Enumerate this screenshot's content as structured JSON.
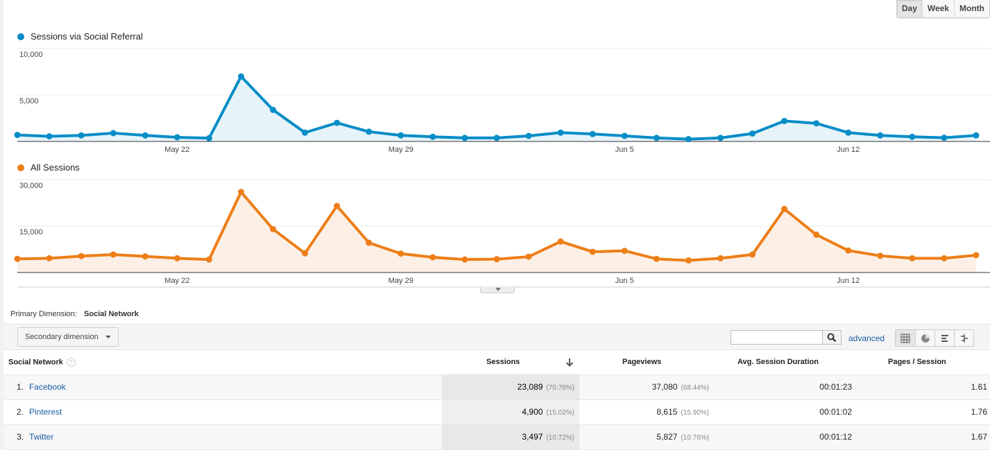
{
  "range_buttons": {
    "day": "Day",
    "week": "Week",
    "month": "Month",
    "active": "Day"
  },
  "chart_data": [
    {
      "type": "area",
      "title": "Sessions via Social Referral",
      "color": "#058dc7",
      "fill": "#e6f3f9",
      "ylim": [
        0,
        10000
      ],
      "yticks": [
        {
          "value": 10000,
          "label": "10,000"
        },
        {
          "value": 5000,
          "label": "5,000"
        }
      ],
      "xticks": [
        {
          "index": 5,
          "label": "May 22"
        },
        {
          "index": 12,
          "label": "May 29"
        },
        {
          "index": 19,
          "label": "Jun 5"
        },
        {
          "index": 26,
          "label": "Jun 12"
        }
      ],
      "x": [
        "May 17",
        "May 18",
        "May 19",
        "May 20",
        "May 21",
        "May 22",
        "May 23",
        "May 24",
        "May 25",
        "May 26",
        "May 27",
        "May 28",
        "May 29",
        "May 30",
        "May 31",
        "Jun 1",
        "Jun 2",
        "Jun 3",
        "Jun 4",
        "Jun 5",
        "Jun 6",
        "Jun 7",
        "Jun 8",
        "Jun 9",
        "Jun 10",
        "Jun 11",
        "Jun 12",
        "Jun 13",
        "Jun 14",
        "Jun 15",
        "Jun 16"
      ],
      "values": [
        700,
        550,
        650,
        900,
        650,
        450,
        350,
        7000,
        3400,
        950,
        2000,
        1050,
        650,
        500,
        380,
        380,
        600,
        950,
        800,
        600,
        380,
        250,
        380,
        850,
        2200,
        1950,
        950,
        650,
        500,
        400,
        650
      ]
    },
    {
      "type": "area",
      "title": "All Sessions",
      "color": "#ed7e17",
      "fill": "#fcefe5",
      "ylim": [
        0,
        30000
      ],
      "yticks": [
        {
          "value": 30000,
          "label": "30,000"
        },
        {
          "value": 15000,
          "label": "15,000"
        }
      ],
      "xticks": [
        {
          "index": 5,
          "label": "May 22"
        },
        {
          "index": 12,
          "label": "May 29"
        },
        {
          "index": 19,
          "label": "Jun 5"
        },
        {
          "index": 26,
          "label": "Jun 12"
        }
      ],
      "x": [
        "May 17",
        "May 18",
        "May 19",
        "May 20",
        "May 21",
        "May 22",
        "May 23",
        "May 24",
        "May 25",
        "May 26",
        "May 27",
        "May 28",
        "May 29",
        "May 30",
        "May 31",
        "Jun 1",
        "Jun 2",
        "Jun 3",
        "Jun 4",
        "Jun 5",
        "Jun 6",
        "Jun 7",
        "Jun 8",
        "Jun 9",
        "Jun 10",
        "Jun 11",
        "Jun 12",
        "Jun 13",
        "Jun 14",
        "Jun 15",
        "Jun 16"
      ],
      "values": [
        4400,
        4600,
        5300,
        5800,
        5200,
        4600,
        4200,
        26000,
        14000,
        6200,
        21500,
        9600,
        6100,
        4900,
        4200,
        4300,
        5100,
        10000,
        6700,
        7000,
        4400,
        3900,
        4600,
        5800,
        20500,
        12200,
        7100,
        5400,
        4600,
        4600,
        5600
      ]
    }
  ],
  "primary_dimension": {
    "label": "Primary Dimension:",
    "value": "Social Network"
  },
  "toolbar": {
    "secondary_dimension": "Secondary dimension",
    "search_value": "",
    "advanced": "advanced"
  },
  "table": {
    "headers": {
      "dimension": "Social Network",
      "sessions": "Sessions",
      "pageviews": "Pageviews",
      "avg_duration": "Avg. Session Duration",
      "pages_per_session": "Pages / Session"
    },
    "rows": [
      {
        "rank": "1.",
        "network": "Facebook",
        "sessions": "23,089",
        "sessions_pct": "(70.78%)",
        "pageviews": "37,080",
        "pageviews_pct": "(68.44%)",
        "avg_duration": "00:01:23",
        "pages_per_session": "1.61"
      },
      {
        "rank": "2.",
        "network": "Pinterest",
        "sessions": "4,900",
        "sessions_pct": "(15.02%)",
        "pageviews": "8,615",
        "pageviews_pct": "(15.90%)",
        "avg_duration": "00:01:02",
        "pages_per_session": "1.76"
      },
      {
        "rank": "3.",
        "network": "Twitter",
        "sessions": "3,497",
        "sessions_pct": "(10.72%)",
        "pageviews": "5,827",
        "pageviews_pct": "(10.76%)",
        "avg_duration": "00:01:12",
        "pages_per_session": "1.67"
      }
    ]
  }
}
